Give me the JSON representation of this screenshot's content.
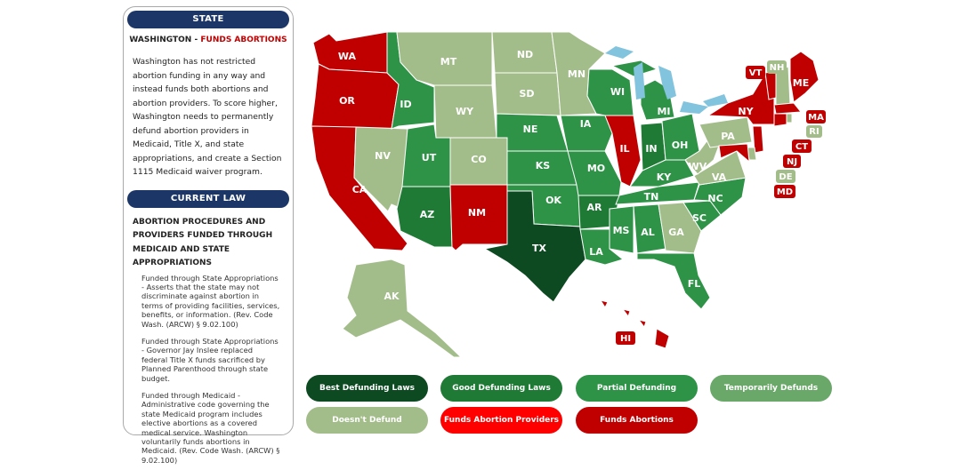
{
  "panel": {
    "state_header": "STATE",
    "state_name": "WASHINGTON",
    "state_separator": " - ",
    "state_status": "FUNDS ABORTIONS",
    "description": "Washington has not restricted abortion funding in any way and instead funds both abortions and abortion providers. To score higher, Washington needs to permanently defund abortion providers in Medicaid, Title X, and state appropriations, and create a Section 1115 Medicaid waiver program.",
    "law_header": "CURRENT LAW",
    "law_title": "ABORTION PROCEDURES AND PROVIDERS FUNDED THROUGH MEDICAID AND STATE APPROPRIATIONS",
    "law_items": [
      "Funded through State Appropriations - Asserts that the state may not discriminate against abortion in terms of providing facilities, services, benefits, or information. (Rev. Code Wash. (ARCW) § 9.02.100)",
      "Funded through State Appropriations - Governor Jay Inslee replaced federal Title X funds sacrificed by Planned Parenthood through state budget.",
      "Funded through Medicaid - Administrative code governing the state Medicaid program includes elective abortions as a covered medical service. Washington voluntarily funds abortions in Medicaid. (Rev. Code Wash. (ARCW) § 9.02.100)"
    ]
  },
  "colors": {
    "best": "#0d4a22",
    "good": "#1f7a35",
    "partial": "#2e9347",
    "temporary": "#6aa86a",
    "doesnt": "#a3bd8a",
    "providers": "#ff0000",
    "funds": "#c00000",
    "lakes": "#82c3dd",
    "header": "#1b3667"
  },
  "legend": [
    {
      "key": "best",
      "label": "Best Defunding Laws"
    },
    {
      "key": "good",
      "label": "Good Defunding Laws"
    },
    {
      "key": "partial",
      "label": "Partial Defunding"
    },
    {
      "key": "temporary",
      "label": "Temporarily Defunds"
    },
    {
      "key": "doesnt",
      "label": "Doesn't Defund"
    },
    {
      "key": "providers",
      "label": "Funds Abortion Providers"
    },
    {
      "key": "funds",
      "label": "Funds Abortions"
    }
  ],
  "states": {
    "WA": {
      "label": "WA",
      "category": "funds"
    },
    "OR": {
      "label": "OR",
      "category": "funds"
    },
    "CA": {
      "label": "CA",
      "category": "funds"
    },
    "NV": {
      "label": "NV",
      "category": "doesnt"
    },
    "ID": {
      "label": "ID",
      "category": "partial"
    },
    "MT": {
      "label": "MT",
      "category": "doesnt"
    },
    "WY": {
      "label": "WY",
      "category": "doesnt"
    },
    "UT": {
      "label": "UT",
      "category": "partial"
    },
    "AZ": {
      "label": "AZ",
      "category": "good"
    },
    "CO": {
      "label": "CO",
      "category": "doesnt"
    },
    "NM": {
      "label": "NM",
      "category": "funds"
    },
    "ND": {
      "label": "ND",
      "category": "doesnt"
    },
    "SD": {
      "label": "SD",
      "category": "doesnt"
    },
    "NE": {
      "label": "NE",
      "category": "partial"
    },
    "KS": {
      "label": "KS",
      "category": "partial"
    },
    "OK": {
      "label": "OK",
      "category": "partial"
    },
    "TX": {
      "label": "TX",
      "category": "best"
    },
    "MN": {
      "label": "MN",
      "category": "doesnt"
    },
    "IA": {
      "label": "IA",
      "category": "partial"
    },
    "MO": {
      "label": "MO",
      "category": "partial"
    },
    "AR": {
      "label": "AR",
      "category": "good"
    },
    "LA": {
      "label": "LA",
      "category": "partial"
    },
    "WI": {
      "label": "WI",
      "category": "partial"
    },
    "IL": {
      "label": "IL",
      "category": "funds"
    },
    "MI": {
      "label": "MI",
      "category": "partial"
    },
    "IN": {
      "label": "IN",
      "category": "good"
    },
    "OH": {
      "label": "OH",
      "category": "partial"
    },
    "KY": {
      "label": "KY",
      "category": "partial"
    },
    "TN": {
      "label": "TN",
      "category": "partial"
    },
    "MS": {
      "label": "MS",
      "category": "partial"
    },
    "AL": {
      "label": "AL",
      "category": "partial"
    },
    "GA": {
      "label": "GA",
      "category": "doesnt"
    },
    "FL": {
      "label": "FL",
      "category": "partial"
    },
    "SC": {
      "label": "SC",
      "category": "partial"
    },
    "NC": {
      "label": "NC",
      "category": "partial"
    },
    "VA": {
      "label": "VA",
      "category": "doesnt"
    },
    "WV": {
      "label": "WV",
      "category": "doesnt"
    },
    "PA": {
      "label": "PA",
      "category": "doesnt"
    },
    "NY": {
      "label": "NY",
      "category": "funds"
    },
    "ME": {
      "label": "ME",
      "category": "funds"
    },
    "AK": {
      "label": "AK",
      "category": "doesnt"
    },
    "HI": {
      "label": "HI",
      "category": "funds"
    },
    "VT": {
      "label": "VT",
      "category": "funds"
    },
    "NH": {
      "label": "NH",
      "category": "doesnt"
    },
    "MA": {
      "label": "MA",
      "category": "funds"
    },
    "RI": {
      "label": "RI",
      "category": "doesnt"
    },
    "CT": {
      "label": "CT",
      "category": "funds"
    },
    "NJ": {
      "label": "NJ",
      "category": "funds"
    },
    "DE": {
      "label": "DE",
      "category": "doesnt"
    },
    "MD": {
      "label": "MD",
      "category": "funds"
    }
  }
}
